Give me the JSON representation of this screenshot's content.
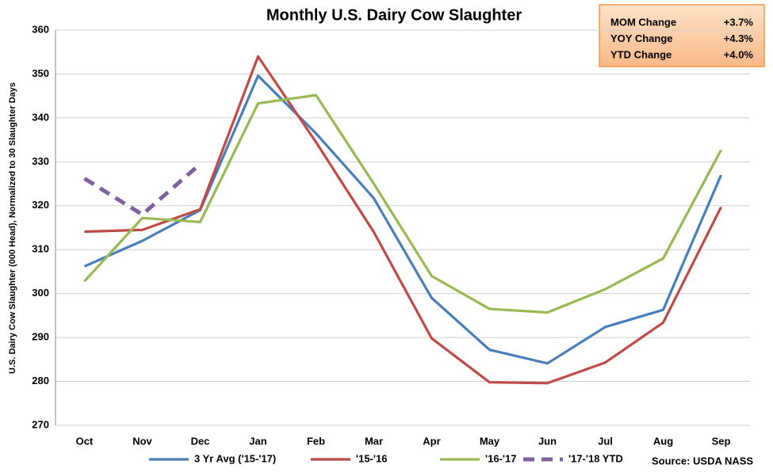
{
  "chart_data": {
    "type": "line",
    "title": "Monthly U.S. Dairy Cow Slaughter",
    "y_label": "U.S. Dairy  Cow Slaughter (000 Head), Normalized to 30 Slaughter Days",
    "categories": [
      "Oct",
      "Nov",
      "Dec",
      "Jan",
      "Feb",
      "Mar",
      "Apr",
      "May",
      "Jun",
      "Jul",
      "Aug",
      "Sep"
    ],
    "series": [
      {
        "name": "3 Yr Avg ('15-'17)",
        "color": "#4a7ebb",
        "dashed": false,
        "values": [
          306.2,
          312,
          319,
          349.6,
          336.5,
          321.7,
          299,
          287.2,
          284.1,
          292.4,
          296.3,
          327
        ]
      },
      {
        "name": "'15-'16",
        "color": "#be4b48",
        "dashed": false,
        "values": [
          314.1,
          314.5,
          319.2,
          354,
          334.5,
          314,
          289.8,
          279.8,
          279.6,
          284.3,
          293.4,
          319.7
        ]
      },
      {
        "name": "'16-'17",
        "color": "#98b954",
        "dashed": false,
        "values": [
          302.8,
          317.2,
          316.3,
          343.3,
          345.2,
          325,
          304,
          296.5,
          295.7,
          301,
          308,
          332.7
        ]
      },
      {
        "name": "'17-'18 YTD",
        "color": "#7d60a0",
        "dashed": true,
        "values": [
          326.2,
          318,
          329.5,
          null,
          null,
          null,
          null,
          null,
          null,
          null,
          null,
          null
        ]
      }
    ],
    "ylim": [
      270,
      360
    ],
    "yticks": [
      270,
      280,
      290,
      300,
      310,
      320,
      330,
      340,
      350,
      360
    ],
    "grid": true,
    "info_box": [
      {
        "label": "MOM Change",
        "value": "+3.7%"
      },
      {
        "label": "YOY Change",
        "value": "+4.3%"
      },
      {
        "label": "YTD Change",
        "value": "+4.0%"
      }
    ],
    "source": "Source: USDA NASS"
  }
}
